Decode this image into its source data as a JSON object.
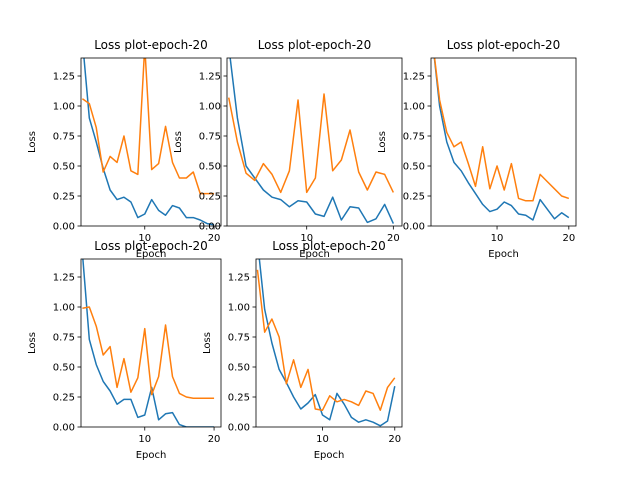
{
  "chart_data": [
    {
      "type": "line",
      "title": "Loss plot-epoch-20",
      "xlabel": "Epoch",
      "ylabel": "Loss",
      "xlim": [
        0.8,
        21
      ],
      "ylim": [
        0,
        1.4
      ],
      "x": [
        1,
        2,
        3,
        4,
        5,
        6,
        7,
        8,
        9,
        10,
        11,
        12,
        13,
        14,
        15,
        16,
        17,
        18,
        19,
        20
      ],
      "series": [
        {
          "color": "#1f77b4",
          "values": [
            1.55,
            0.9,
            0.7,
            0.48,
            0.3,
            0.22,
            0.24,
            0.2,
            0.07,
            0.1,
            0.22,
            0.13,
            0.09,
            0.17,
            0.15,
            0.07,
            0.07,
            0.05,
            0.02,
            0.01
          ]
        },
        {
          "color": "#ff7f0e",
          "values": [
            1.06,
            1.02,
            0.82,
            0.45,
            0.58,
            0.53,
            0.75,
            0.46,
            0.43,
            1.5,
            0.47,
            0.52,
            0.83,
            0.53,
            0.4,
            0.4,
            0.45,
            0.27,
            0.27,
            0.27
          ]
        }
      ],
      "xticks": [
        10,
        20
      ],
      "xtick_labels": [
        "10",
        "20"
      ],
      "yticks": [
        0,
        0.25,
        0.5,
        0.75,
        1.0,
        1.25
      ],
      "ytick_labels": [
        "0.00",
        "0.25",
        "0.50",
        "0.75",
        "1.00",
        "1.25"
      ]
    },
    {
      "type": "line",
      "title": "Loss plot-epoch-20",
      "xlabel": "Epoch",
      "ylabel": "Loss",
      "xlim": [
        0.8,
        21
      ],
      "ylim": [
        0,
        1.4
      ],
      "x": [
        1,
        2,
        3,
        4,
        5,
        6,
        7,
        8,
        9,
        10,
        11,
        12,
        13,
        14,
        15,
        16,
        17,
        18,
        19,
        20
      ],
      "series": [
        {
          "color": "#1f77b4",
          "values": [
            1.5,
            0.9,
            0.5,
            0.4,
            0.3,
            0.24,
            0.22,
            0.16,
            0.21,
            0.2,
            0.1,
            0.08,
            0.24,
            0.05,
            0.16,
            0.15,
            0.03,
            0.06,
            0.18,
            0.02
          ]
        },
        {
          "color": "#ff7f0e",
          "values": [
            1.07,
            0.7,
            0.44,
            0.38,
            0.52,
            0.43,
            0.28,
            0.46,
            1.05,
            0.28,
            0.4,
            1.1,
            0.46,
            0.55,
            0.8,
            0.45,
            0.3,
            0.45,
            0.43,
            0.28
          ]
        }
      ],
      "xticks": [
        10,
        20
      ],
      "xtick_labels": [
        "10",
        "20"
      ],
      "yticks": [
        0,
        0.25,
        0.5,
        0.75,
        1.0,
        1.25
      ],
      "ytick_labels": [
        "0.00",
        "0.25",
        "0.50",
        "0.75",
        "1.00",
        "1.25"
      ]
    },
    {
      "type": "line",
      "title": "Loss plot-epoch-20",
      "xlabel": "Epoch",
      "ylabel": "Loss",
      "xlim": [
        0.8,
        21
      ],
      "ylim": [
        0,
        1.4
      ],
      "x": [
        1,
        2,
        3,
        4,
        5,
        6,
        7,
        8,
        9,
        10,
        11,
        12,
        13,
        14,
        15,
        16,
        17,
        18,
        19,
        20
      ],
      "series": [
        {
          "color": "#1f77b4",
          "values": [
            1.55,
            1.0,
            0.7,
            0.53,
            0.46,
            0.36,
            0.27,
            0.18,
            0.12,
            0.14,
            0.2,
            0.17,
            0.1,
            0.09,
            0.05,
            0.22,
            0.14,
            0.06,
            0.11,
            0.07
          ]
        },
        {
          "color": "#ff7f0e",
          "values": [
            1.55,
            1.05,
            0.78,
            0.66,
            0.7,
            0.52,
            0.33,
            0.66,
            0.31,
            0.5,
            0.3,
            0.52,
            0.23,
            0.21,
            0.21,
            0.43,
            0.37,
            0.31,
            0.25,
            0.23
          ]
        }
      ],
      "xticks": [
        10,
        20
      ],
      "xtick_labels": [
        "10",
        "20"
      ],
      "yticks": [
        0,
        0.25,
        0.5,
        0.75,
        1.0,
        1.25
      ],
      "ytick_labels": [
        "0.00",
        "0.25",
        "0.50",
        "0.75",
        "1.00",
        "1.25"
      ]
    },
    {
      "type": "line",
      "title": "Loss plot-epoch-20",
      "xlabel": "Epoch",
      "ylabel": "Loss",
      "xlim": [
        0.8,
        21
      ],
      "ylim": [
        0,
        1.4
      ],
      "x": [
        1,
        2,
        3,
        4,
        5,
        6,
        7,
        8,
        9,
        10,
        11,
        12,
        13,
        14,
        15,
        16,
        17,
        18,
        19,
        20
      ],
      "series": [
        {
          "color": "#1f77b4",
          "values": [
            1.45,
            0.73,
            0.52,
            0.38,
            0.3,
            0.19,
            0.23,
            0.23,
            0.08,
            0.1,
            0.33,
            0.06,
            0.11,
            0.12,
            0.02,
            0.0,
            0.0,
            0.0,
            0.0,
            0.0
          ]
        },
        {
          "color": "#ff7f0e",
          "values": [
            0.99,
            1.0,
            0.84,
            0.6,
            0.67,
            0.33,
            0.57,
            0.29,
            0.41,
            0.82,
            0.27,
            0.42,
            0.85,
            0.42,
            0.28,
            0.25,
            0.24,
            0.24,
            0.24,
            0.24
          ]
        }
      ],
      "xticks": [
        10,
        20
      ],
      "xtick_labels": [
        "10",
        "20"
      ],
      "yticks": [
        0,
        0.25,
        0.5,
        0.75,
        1.0,
        1.25
      ],
      "ytick_labels": [
        "0.00",
        "0.25",
        "0.50",
        "0.75",
        "1.00",
        "1.25"
      ]
    },
    {
      "type": "line",
      "title": "Loss plot-epoch-20",
      "xlabel": "Epoch",
      "ylabel": "Loss",
      "xlim": [
        0.8,
        21
      ],
      "ylim": [
        0,
        1.4
      ],
      "x": [
        1,
        2,
        3,
        4,
        5,
        6,
        7,
        8,
        9,
        10,
        11,
        12,
        13,
        14,
        15,
        16,
        17,
        18,
        19,
        20
      ],
      "series": [
        {
          "color": "#1f77b4",
          "values": [
            1.55,
            0.98,
            0.7,
            0.48,
            0.37,
            0.25,
            0.15,
            0.2,
            0.27,
            0.1,
            0.06,
            0.28,
            0.19,
            0.08,
            0.04,
            0.06,
            0.04,
            0.01,
            0.05,
            0.34
          ]
        },
        {
          "color": "#ff7f0e",
          "values": [
            1.31,
            0.79,
            0.9,
            0.75,
            0.36,
            0.56,
            0.33,
            0.48,
            0.15,
            0.14,
            0.26,
            0.21,
            0.23,
            0.21,
            0.18,
            0.3,
            0.28,
            0.14,
            0.33,
            0.41
          ]
        }
      ],
      "xticks": [
        10,
        20
      ],
      "xtick_labels": [
        "10",
        "20"
      ],
      "yticks": [
        0,
        0.25,
        0.5,
        0.75,
        1.0,
        1.25
      ],
      "ytick_labels": [
        "0.00",
        "0.25",
        "0.50",
        "0.75",
        "1.00",
        "1.25"
      ]
    }
  ]
}
